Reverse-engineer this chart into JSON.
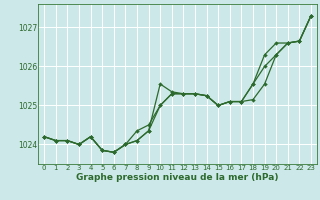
{
  "xlabel": "Graphe pression niveau de la mer (hPa)",
  "background_color": "#cce8e8",
  "plot_bg_color": "#cce8e8",
  "grid_color": "#aad4d4",
  "line_color": "#2d6a2d",
  "marker_color": "#2d6a2d",
  "ylim": [
    1023.5,
    1027.6
  ],
  "xlim": [
    -0.5,
    23.5
  ],
  "yticks": [
    1024,
    1025,
    1026,
    1027
  ],
  "xticks": [
    0,
    1,
    2,
    3,
    4,
    5,
    6,
    7,
    8,
    9,
    10,
    11,
    12,
    13,
    14,
    15,
    16,
    17,
    18,
    19,
    20,
    21,
    22,
    23
  ],
  "line1": [
    1024.2,
    1024.1,
    1024.1,
    1024.0,
    1024.2,
    1023.85,
    1023.8,
    1024.0,
    1024.1,
    1024.35,
    1025.55,
    1025.35,
    1025.3,
    1025.3,
    1025.25,
    1025.0,
    1025.1,
    1025.1,
    1025.55,
    1026.3,
    1026.6,
    1026.6,
    1026.65,
    1027.3
  ],
  "line2": [
    1024.2,
    1024.1,
    1024.1,
    1024.0,
    1024.2,
    1023.85,
    1023.8,
    1024.0,
    1024.1,
    1024.35,
    1025.0,
    1025.3,
    1025.3,
    1025.3,
    1025.25,
    1025.0,
    1025.1,
    1025.1,
    1025.15,
    1025.55,
    1026.3,
    1026.6,
    1026.65,
    1027.3
  ],
  "line3": [
    1024.2,
    1024.1,
    1024.1,
    1024.0,
    1024.2,
    1023.85,
    1023.8,
    1024.0,
    1024.35,
    1024.5,
    1025.0,
    1025.3,
    1025.3,
    1025.3,
    1025.25,
    1025.0,
    1025.1,
    1025.1,
    1025.55,
    1026.0,
    1026.3,
    1026.6,
    1026.65,
    1027.3
  ],
  "marker_size": 2.0,
  "linewidth": 0.9,
  "xtick_fontsize": 5.0,
  "ytick_fontsize": 5.5,
  "xlabel_fontsize": 6.5
}
